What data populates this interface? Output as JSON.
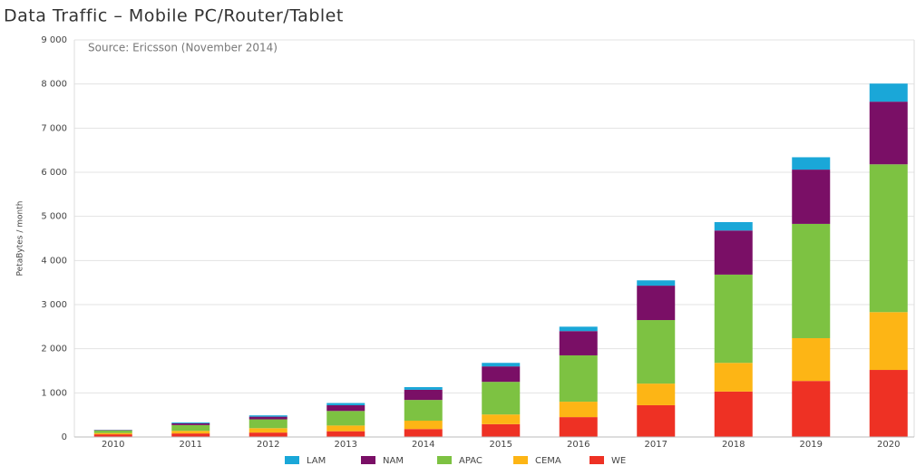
{
  "chart_data": {
    "type": "stacked_bar",
    "title": "Data Traffic – Mobile PC/Router/Tablet",
    "annotation": "Source: Ericsson (November 2014)",
    "y_label": "PetaBytes / month",
    "categories": [
      "2010",
      "2011",
      "2012",
      "2013",
      "2014",
      "2015",
      "2016",
      "2017",
      "2018",
      "2019",
      "2020"
    ],
    "series": [
      {
        "name": "LAM",
        "color": "#1aa7d8",
        "values": [
          5,
          20,
          30,
          50,
          60,
          80,
          100,
          120,
          190,
          280,
          410
        ]
      },
      {
        "name": "NAM",
        "color": "#7a0f66",
        "values": [
          10,
          40,
          60,
          130,
          230,
          350,
          550,
          780,
          1000,
          1230,
          1420
        ]
      },
      {
        "name": "APAC",
        "color": "#7dc242",
        "values": [
          60,
          130,
          200,
          330,
          470,
          740,
          1050,
          1440,
          2000,
          2590,
          3350
        ]
      },
      {
        "name": "CEMA",
        "color": "#fdb515",
        "values": [
          30,
          60,
          100,
          130,
          190,
          220,
          350,
          490,
          650,
          970,
          1310
        ]
      },
      {
        "name": "WE",
        "color": "#ee3124",
        "values": [
          60,
          80,
          100,
          130,
          180,
          290,
          450,
          720,
          1030,
          1270,
          1520
        ]
      }
    ],
    "ylim": [
      0,
      9000
    ],
    "yticks": [
      0,
      {
        "value": 1000,
        "label": "1 000"
      },
      {
        "value": 2000,
        "label": "2 000"
      },
      {
        "value": 3000,
        "label": "3 000"
      },
      {
        "value": 4000,
        "label": "4 000"
      },
      {
        "value": 5000,
        "label": "5 000"
      },
      {
        "value": 6000,
        "label": "6 000"
      },
      {
        "value": 7000,
        "label": "7 000"
      },
      {
        "value": 8000,
        "label": "8 000"
      },
      {
        "value": 9000,
        "label": "9 000"
      }
    ],
    "grid": true,
    "legend": "bottom"
  }
}
